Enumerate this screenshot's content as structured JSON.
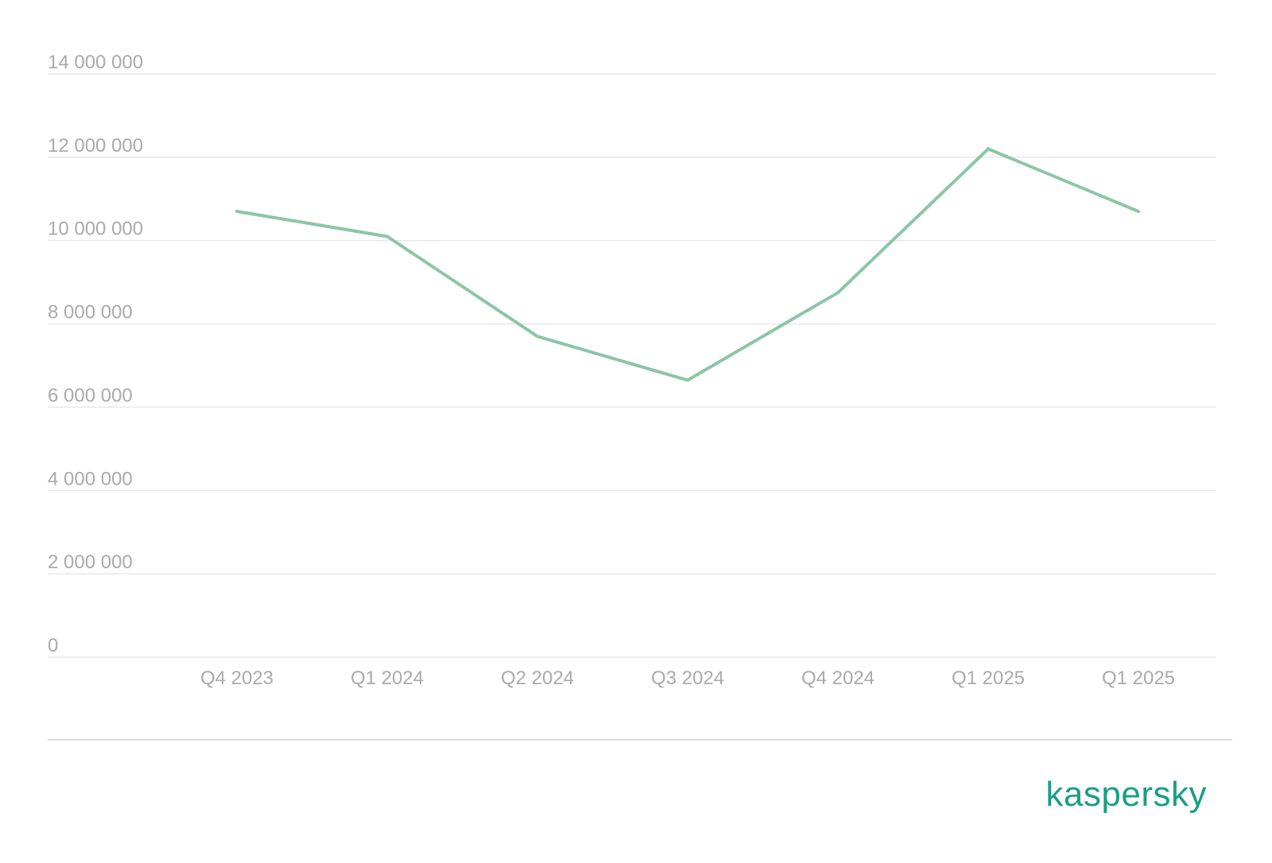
{
  "chart_data": {
    "type": "line",
    "categories": [
      "Q4 2023",
      "Q1 2024",
      "Q2 2024",
      "Q3 2024",
      "Q4 2024",
      "Q1 2025",
      "Q1 2025"
    ],
    "series": [
      {
        "values": [
          10700000,
          10100000,
          7700000,
          6650000,
          8750000,
          12200000,
          10700000
        ],
        "color": "#8cc5a7"
      }
    ],
    "y_ticks": [
      0,
      2000000,
      4000000,
      6000000,
      8000000,
      10000000,
      12000000,
      14000000
    ],
    "y_tick_labels": [
      "0",
      "2 000 000",
      "4 000 000",
      "6 000 000",
      "8 000 000",
      "10 000 000",
      "12 000 000",
      "14 000 000"
    ],
    "ylim": [
      0,
      14000000
    ],
    "grid": true,
    "legend": "none",
    "title": "",
    "xlabel": "",
    "ylabel": ""
  },
  "brand": {
    "logo_text": "kaspersky",
    "color": "#1a9e86"
  }
}
